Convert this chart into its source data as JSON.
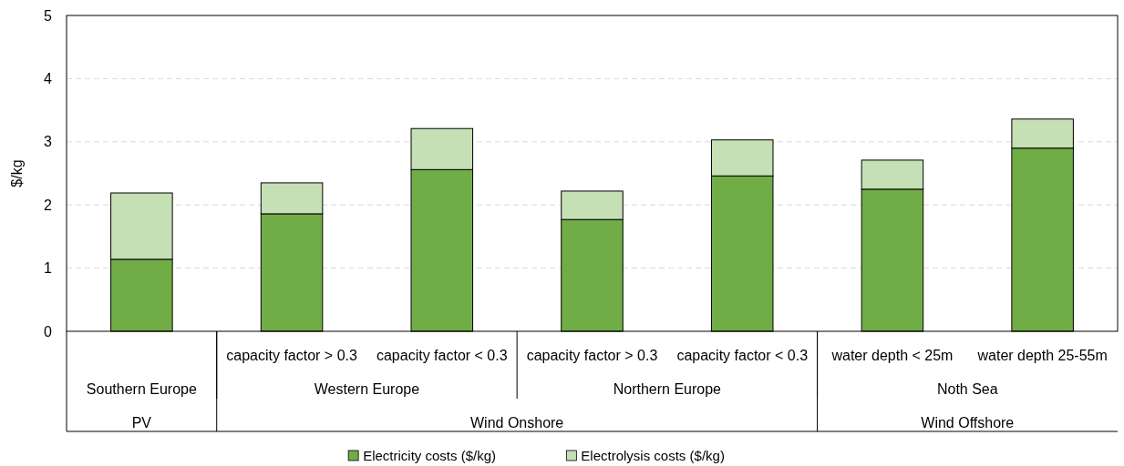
{
  "chart_data": {
    "type": "bar",
    "stacked": true,
    "ylabel": "$/kg",
    "categories": [
      null,
      "capacity factor > 0.3",
      "capacity factor < 0.3",
      "capacity factor > 0.3",
      "capacity factor < 0.3",
      "water depth < 25m",
      "water depth 25-55m"
    ],
    "series": [
      {
        "name": "Electricity costs ($/kg)",
        "color": "#70ad47",
        "values": [
          1.14,
          1.86,
          2.56,
          1.77,
          2.46,
          2.25,
          2.9
        ]
      },
      {
        "name": "Electrolysis costs ($/kg)",
        "color": "#c5e0b4",
        "values": [
          1.05,
          0.49,
          0.65,
          0.45,
          0.57,
          0.46,
          0.46
        ]
      }
    ],
    "annotations": [
      "Southern Europe",
      "Western Europe",
      "Northern Europe",
      "Noth Sea",
      "PV",
      "Wind Onshore",
      "Wind Offshore"
    ],
    "ylim": [
      0,
      5
    ],
    "yticks": [
      0,
      1,
      2,
      3,
      4,
      5
    ],
    "grid": "y",
    "legend": "bottom"
  }
}
